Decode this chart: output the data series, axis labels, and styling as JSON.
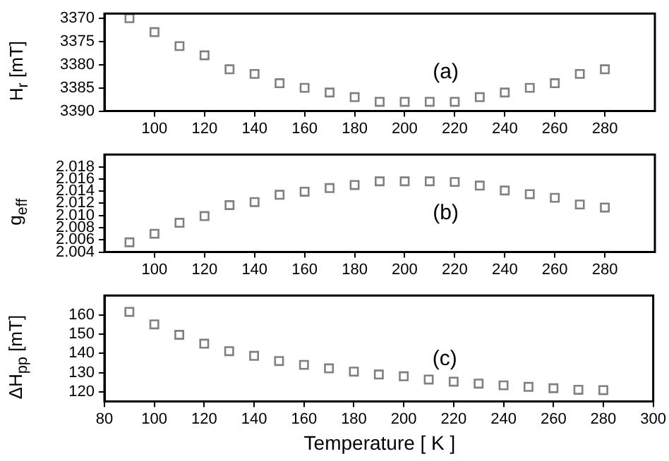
{
  "chart_data": [
    {
      "type": "scatter",
      "ylabel": "H$_{r}$ [mT]",
      "x": [
        90,
        100,
        110,
        120,
        130,
        140,
        150,
        160,
        170,
        180,
        190,
        200,
        210,
        220,
        230,
        240,
        250,
        260,
        270,
        280
      ],
      "values": [
        3370,
        3373,
        3376,
        3378,
        3381,
        3382,
        3384,
        3385,
        3386,
        3387,
        3388,
        3388,
        3388,
        3388,
        3387,
        3386,
        3385,
        3384,
        3382,
        3381
      ],
      "color": "#808080",
      "marker": "square",
      "grid": false,
      "legend": false,
      "xlim": [
        80,
        300
      ],
      "xticks": [
        100,
        120,
        140,
        160,
        180,
        200,
        220,
        240,
        260,
        280
      ],
      "ylim": [
        3390,
        3369
      ],
      "yticks": [
        3370,
        3375,
        3380,
        3385,
        3390
      ],
      "annotations": [
        "(a)"
      ]
    },
    {
      "type": "scatter",
      "ylabel": "g$_{eff}$",
      "x": [
        90,
        100,
        110,
        120,
        130,
        140,
        150,
        160,
        170,
        180,
        190,
        200,
        210,
        220,
        230,
        240,
        250,
        260,
        270,
        280
      ],
      "values": [
        2.0056,
        2.007,
        2.0088,
        2.0099,
        2.0117,
        2.0122,
        2.0134,
        2.0139,
        2.0145,
        2.015,
        2.0156,
        2.0156,
        2.0156,
        2.0155,
        2.0149,
        2.0141,
        2.0135,
        2.0129,
        2.0118,
        2.0113
      ],
      "color": "#808080",
      "marker": "square",
      "grid": false,
      "legend": false,
      "xlim": [
        80,
        300
      ],
      "xticks": [
        100,
        120,
        140,
        160,
        180,
        200,
        220,
        240,
        260,
        280
      ],
      "ylim": [
        2.004,
        2.02
      ],
      "yticks": [
        2.004,
        2.006,
        2.008,
        {
          "value": 2.01,
          "label": "2.010"
        },
        2.012,
        2.014,
        2.016,
        2.018
      ],
      "annotations": [
        "(b)"
      ]
    },
    {
      "type": "scatter",
      "xlabel": "Temperature [ K ]",
      "ylabel": "ΔH$_{pp}$ [mT]",
      "x": [
        90,
        100,
        110,
        120,
        130,
        140,
        150,
        160,
        170,
        180,
        190,
        200,
        210,
        220,
        230,
        240,
        250,
        260,
        270,
        280
      ],
      "values": [
        161.5,
        155,
        149.6,
        145,
        141.1,
        138.7,
        136,
        134,
        132.2,
        130.5,
        129,
        128.1,
        126.4,
        125.3,
        124.3,
        123.4,
        122.6,
        121.9,
        121.1,
        120.9
      ],
      "color": "#808080",
      "marker": "square",
      "grid": false,
      "legend": false,
      "xlim": [
        80,
        300
      ],
      "xticks": [
        80,
        100,
        120,
        140,
        160,
        180,
        200,
        220,
        240,
        260,
        280,
        300
      ],
      "ylim": [
        115,
        170
      ],
      "yticks": [
        120,
        130,
        140,
        150,
        160
      ],
      "annotations": [
        "(c)"
      ]
    }
  ]
}
